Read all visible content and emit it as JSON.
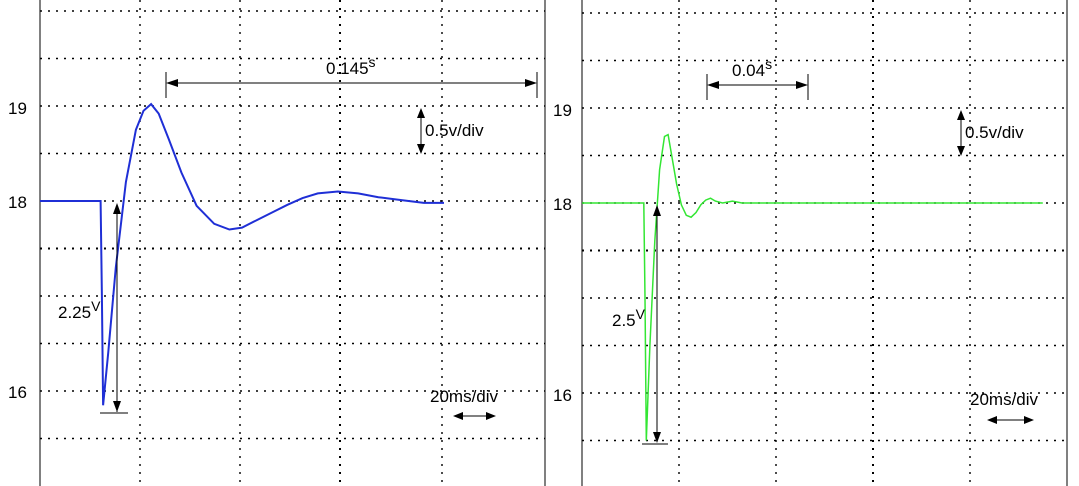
{
  "chart_data": [
    {
      "type": "line",
      "panel": "left",
      "title": "",
      "xlabel": "",
      "ylabel": "",
      "yticks": [
        "19",
        "18",
        "16"
      ],
      "ylim": [
        15.5,
        20.0
      ],
      "xlim": [
        0,
        200
      ],
      "grid": true,
      "series": [
        {
          "color": "#1f2fd6",
          "points": [
            [
              0,
              18.0
            ],
            [
              24,
              18.0
            ],
            [
              24.5,
              17.0
            ],
            [
              25,
              15.85
            ],
            [
              27,
              16.4
            ],
            [
              30,
              17.3
            ],
            [
              34,
              18.2
            ],
            [
              38,
              18.75
            ],
            [
              41,
              18.95
            ],
            [
              44,
              19.02
            ],
            [
              47,
              18.92
            ],
            [
              51,
              18.65
            ],
            [
              56,
              18.3
            ],
            [
              62,
              17.95
            ],
            [
              69,
              17.76
            ],
            [
              75,
              17.7
            ],
            [
              80,
              17.72
            ],
            [
              86,
              17.8
            ],
            [
              92,
              17.88
            ],
            [
              98,
              17.96
            ],
            [
              104,
              18.03
            ],
            [
              110,
              18.08
            ],
            [
              118,
              18.1
            ],
            [
              126,
              18.08
            ],
            [
              134,
              18.04
            ],
            [
              140,
              18.02
            ],
            [
              146,
              18.0
            ],
            [
              152,
              17.98
            ],
            [
              160,
              17.98
            ]
          ]
        }
      ],
      "annotations": {
        "period_text": "0.145",
        "period_unit": "s",
        "scale_text": "0.5v/div",
        "drop_text": "2.25",
        "drop_unit": "V",
        "time_scale_text": "20ms/div"
      }
    },
    {
      "type": "line",
      "panel": "right",
      "title": "",
      "xlabel": "",
      "ylabel": "",
      "yticks": [
        "19",
        "18",
        "16"
      ],
      "ylim": [
        15.5,
        20.0
      ],
      "xlim": [
        0,
        200
      ],
      "grid": true,
      "series": [
        {
          "color": "#33e633",
          "points": [
            [
              0,
              18.0
            ],
            [
              25.5,
              18.0
            ],
            [
              26,
              17.0
            ],
            [
              26.5,
              15.5
            ],
            [
              28,
              16.5
            ],
            [
              30,
              17.6
            ],
            [
              32,
              18.35
            ],
            [
              34,
              18.7
            ],
            [
              35.5,
              18.72
            ],
            [
              37,
              18.5
            ],
            [
              39,
              18.2
            ],
            [
              41,
              17.98
            ],
            [
              43,
              17.87
            ],
            [
              45,
              17.85
            ],
            [
              47,
              17.9
            ],
            [
              49,
              17.98
            ],
            [
              51,
              18.03
            ],
            [
              53,
              18.05
            ],
            [
              55,
              18.02
            ],
            [
              58,
              18.0
            ],
            [
              62,
              18.02
            ],
            [
              66,
              18.0
            ],
            [
              80,
              18.0
            ],
            [
              100,
              18.0
            ],
            [
              130,
              18.0
            ],
            [
              160,
              18.0
            ],
            [
              190,
              18.0
            ]
          ]
        }
      ],
      "annotations": {
        "period_text": "0.04",
        "period_unit": "s",
        "scale_text": "0.5v/div",
        "drop_text": "2.5",
        "drop_unit": "V",
        "time_scale_text": "20ms/div"
      }
    }
  ]
}
